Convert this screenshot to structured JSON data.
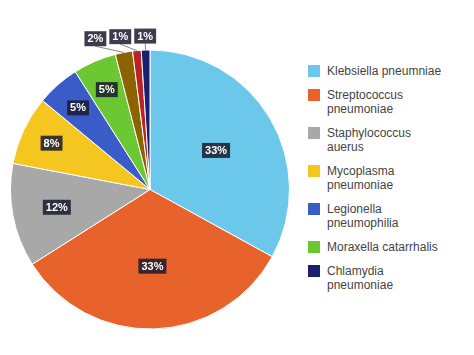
{
  "chart_data": {
    "type": "pie",
    "categories": [
      "Klebsiella pneumniae",
      "Streptococcus\npneumoniae",
      "Staphylococcus\nauerus",
      "Mycoplasma\npneumoniae",
      "Legionella\npneumophilia",
      "Moraxella catarrhalis",
      null,
      null,
      "Chlamydia\npneumoniae"
    ],
    "values": [
      33,
      33,
      12,
      8,
      5,
      5,
      2,
      1,
      1
    ],
    "value_labels": [
      "33%",
      "33%",
      "12%",
      "8%",
      "5%",
      "5%",
      "2%",
      "1%",
      "1%"
    ],
    "colors": [
      "#6bc8ea",
      "#e8622c",
      "#a8a8a8",
      "#f5c520",
      "#3a5cc8",
      "#6cc832",
      "#8b6400",
      "#bb2222",
      "#1a2070"
    ],
    "data_labels": true,
    "legend": "right"
  }
}
